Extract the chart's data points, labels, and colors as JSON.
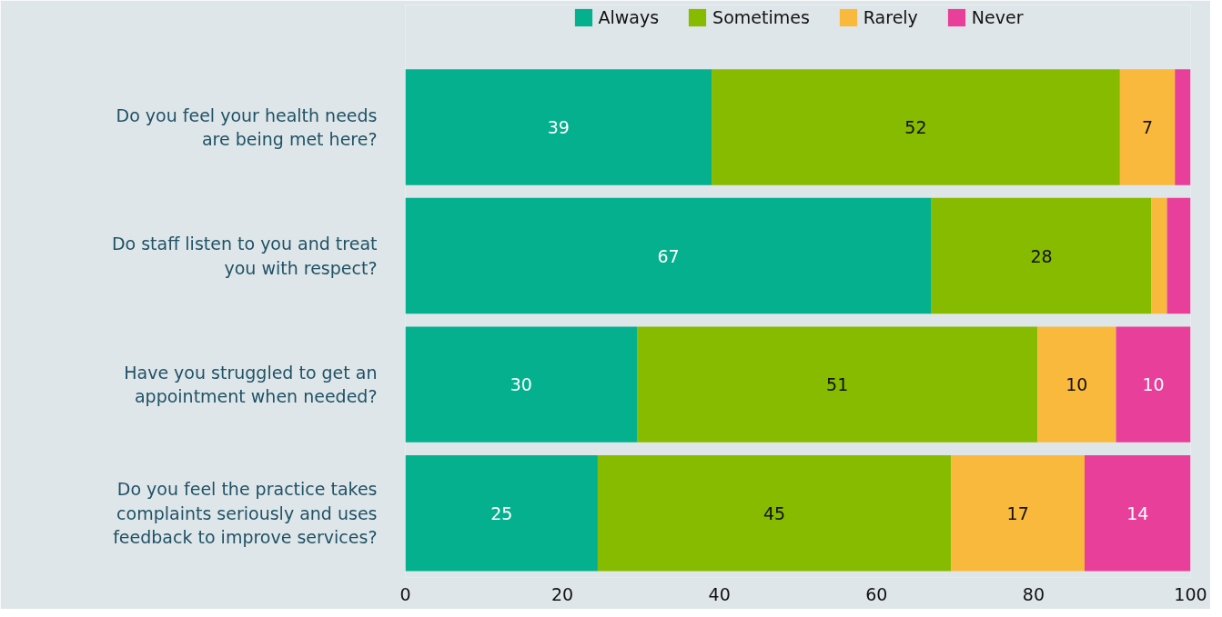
{
  "chart_data": {
    "type": "bar",
    "orientation": "horizontal",
    "stacked": true,
    "categories": [
      "Do you feel your health needs are being met here?",
      "Do staff listen to you and treat you with respect?",
      "Have you struggled to get an appointment when needed?",
      "Do you feel the practice takes complaints seriously and uses feedback to improve services?"
    ],
    "series": [
      {
        "name": "Always",
        "color": "#05b08f",
        "values": [
          39,
          67,
          29.5,
          24.5
        ],
        "value_labels": [
          "39",
          "67",
          "30",
          "25"
        ]
      },
      {
        "name": "Sometimes",
        "color": "#86bb00",
        "values": [
          52,
          28,
          51,
          45
        ],
        "value_labels": [
          "52",
          "28",
          "51",
          "45"
        ]
      },
      {
        "name": "Rarely",
        "color": "#f9b93d",
        "values": [
          7,
          2,
          10,
          17
        ],
        "value_labels": [
          "7",
          null,
          "10",
          "17"
        ]
      },
      {
        "name": "Never",
        "color": "#e8409a",
        "values": [
          2,
          3,
          9.5,
          13.5
        ],
        "value_labels": [
          null,
          null,
          "10",
          "14"
        ]
      }
    ],
    "xlim": [
      0,
      100
    ],
    "xticks": [
      0,
      20,
      40,
      60,
      80,
      100
    ],
    "grid": false,
    "legend": "top"
  }
}
